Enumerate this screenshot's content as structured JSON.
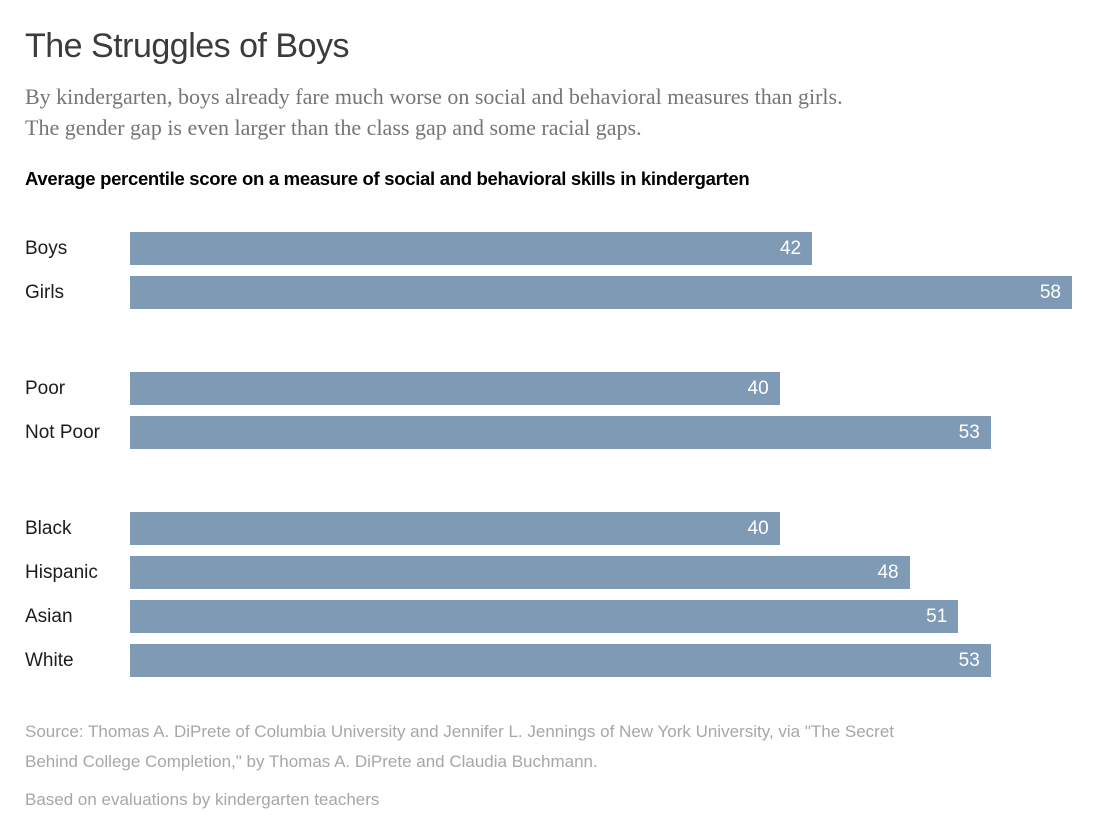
{
  "header": {
    "title": "The Struggles of Boys",
    "subtitle_lines": [
      "By kindergarten, boys already fare much worse on social and behavioral measures than girls.",
      "The gender gap is even larger than the class gap and some racial gaps."
    ]
  },
  "chart_data": {
    "type": "bar",
    "orientation": "horizontal",
    "title": "Average percentile score on a measure of social and behavioral skills in kindergarten",
    "value_unit": "percentile",
    "axis_max": 58,
    "bar_color": "#7e9ab5",
    "value_label_color": "#ffffff",
    "grid": false,
    "legend": false,
    "groups": [
      {
        "name": "gender",
        "categories": [
          "Boys",
          "Girls"
        ],
        "values": [
          42,
          58
        ]
      },
      {
        "name": "poverty",
        "categories": [
          "Poor",
          "Not Poor"
        ],
        "values": [
          40,
          53
        ]
      },
      {
        "name": "race",
        "categories": [
          "Black",
          "Hispanic",
          "Asian",
          "White"
        ],
        "values": [
          40,
          48,
          51,
          53
        ]
      }
    ]
  },
  "footer": {
    "source_lines": [
      "Source: Thomas A. DiPrete of Columbia University and Jennifer L. Jennings of New York University, via \"The Secret",
      "Behind College Completion,\" by Thomas A. DiPrete and Claudia Buchmann."
    ],
    "note": "Based on evaluations by kindergarten teachers"
  }
}
